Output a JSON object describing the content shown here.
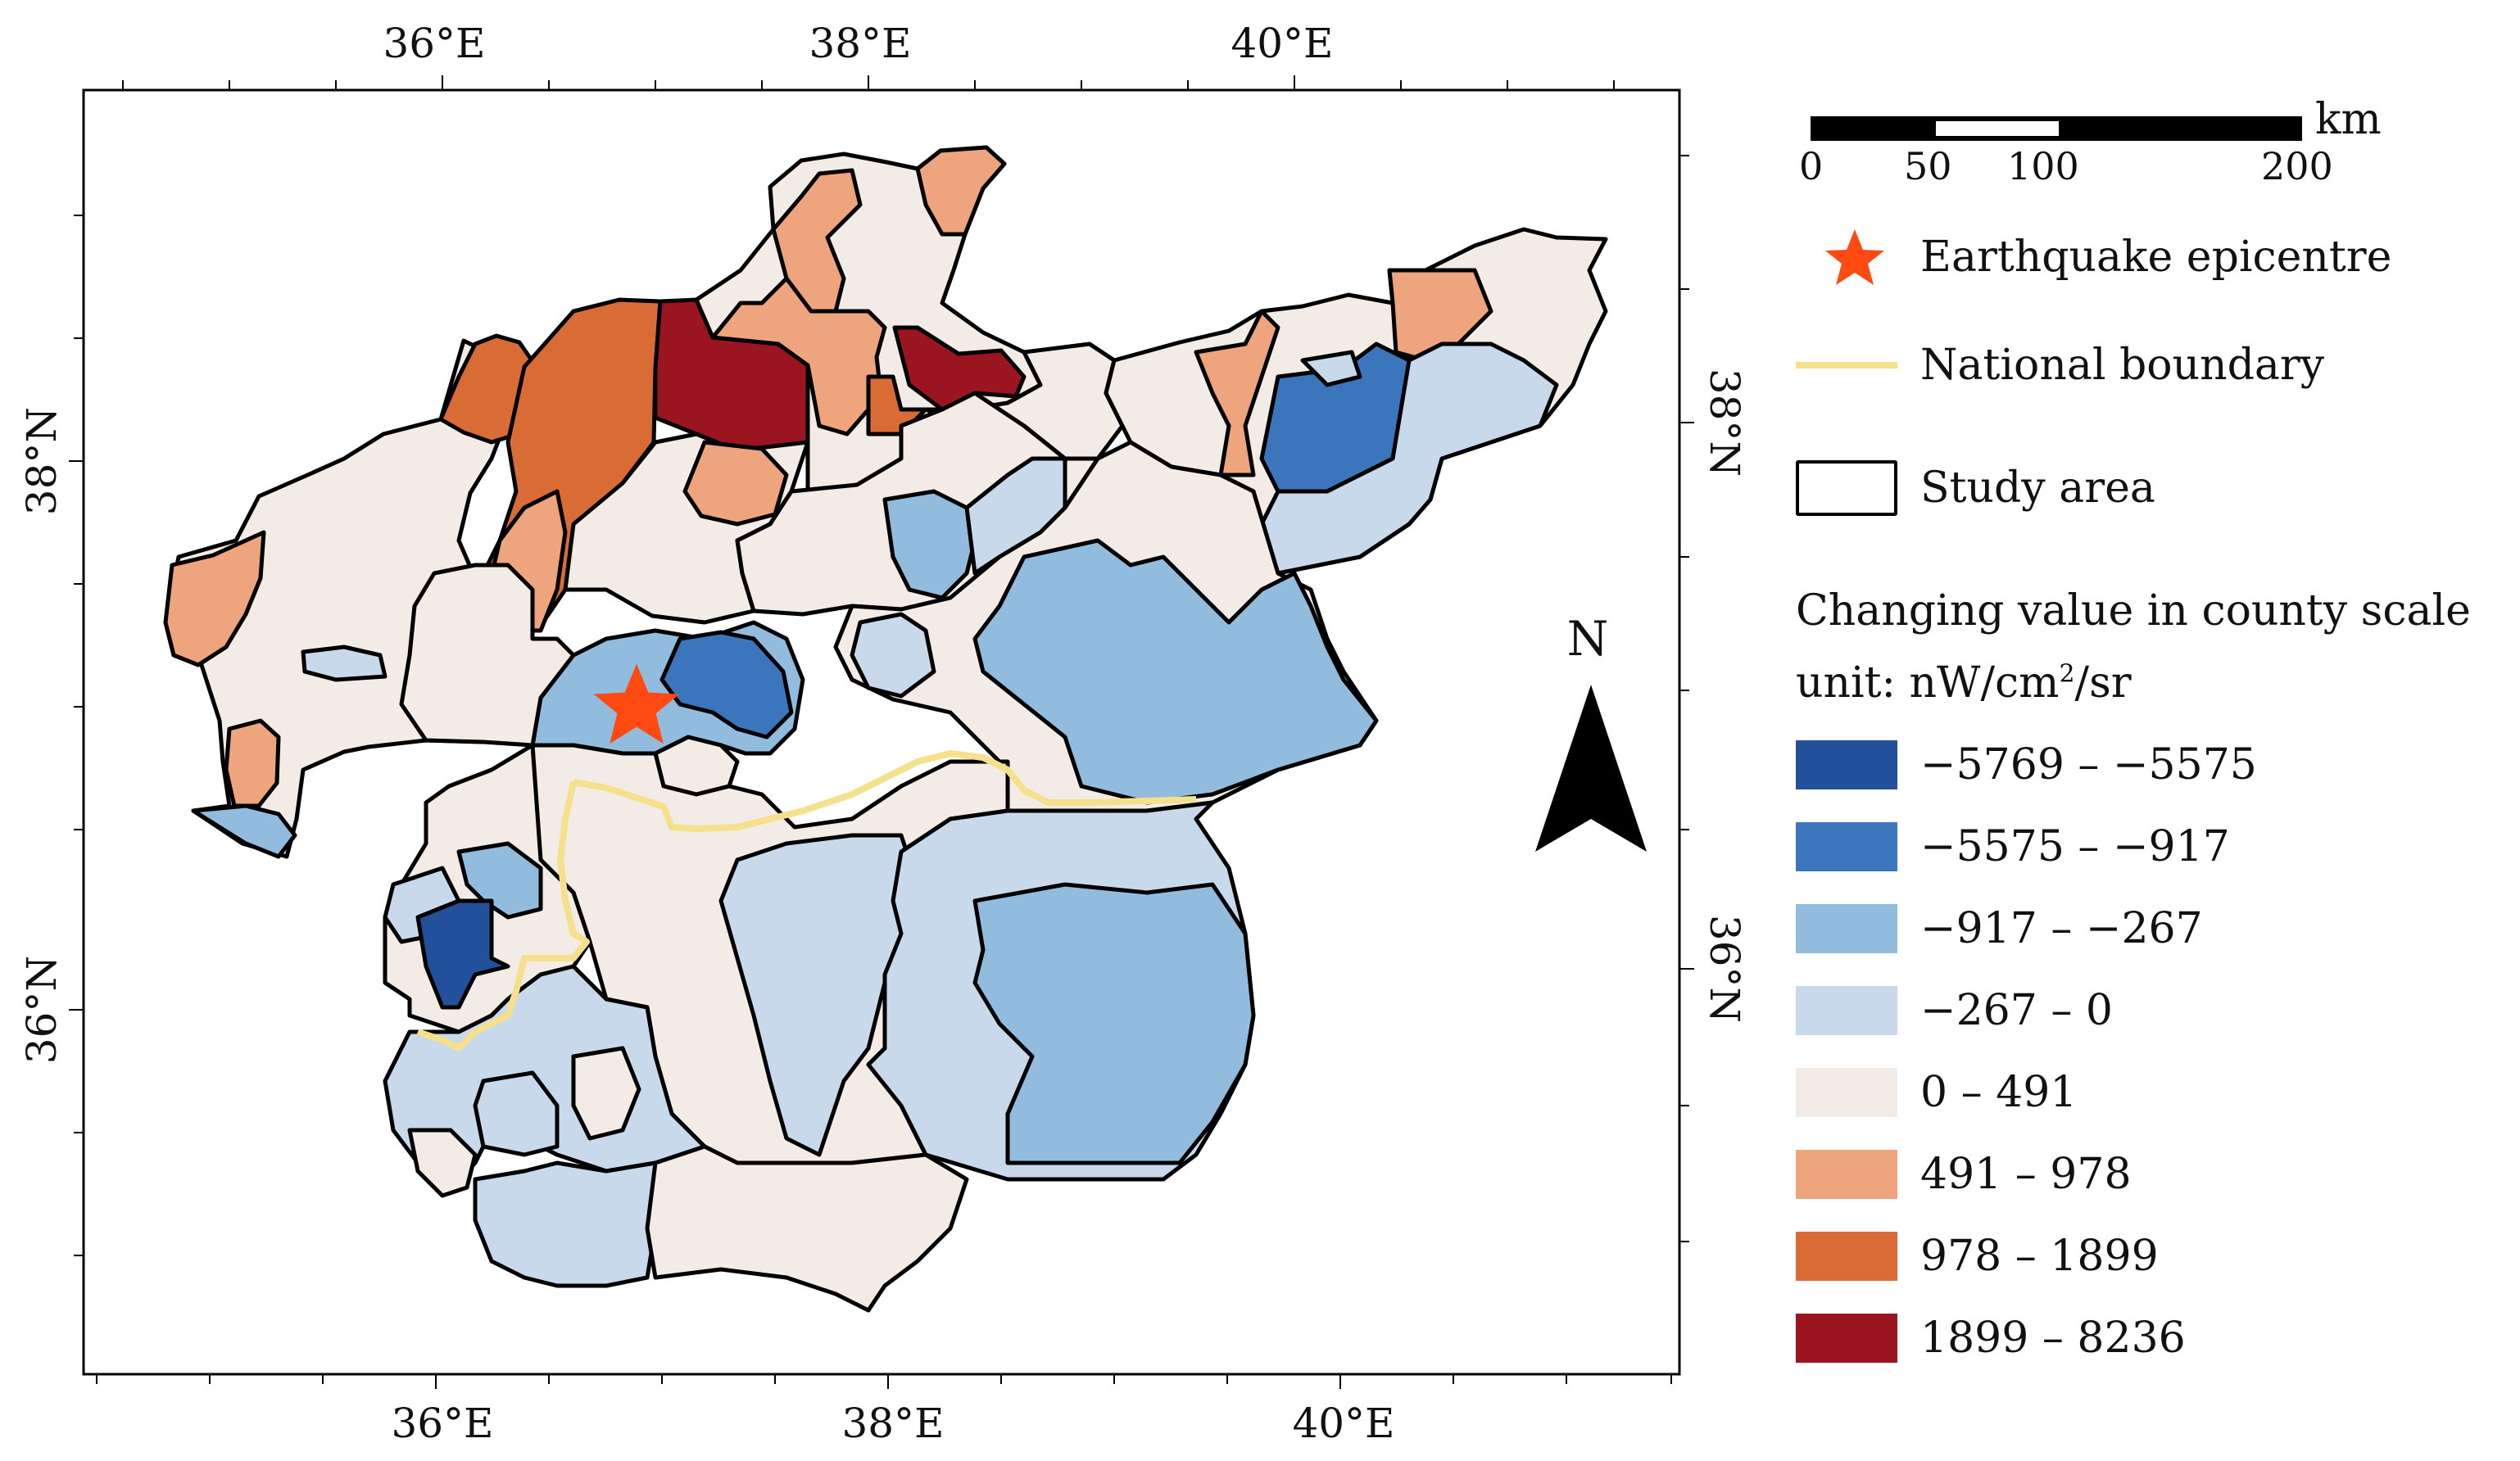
{
  "map": {
    "top_lon_labels": [
      "36°E",
      "38°E",
      "40°E"
    ],
    "bottom_lon_labels": [
      "36°E",
      "38°E",
      "40°E"
    ],
    "left_lat_labels": [
      "38°N",
      "36°N"
    ],
    "right_lat_labels": [
      "38°N",
      "36°N"
    ],
    "north_label": "N"
  },
  "legend": {
    "scale_unit": "km",
    "scale_ticks": [
      "0",
      "50",
      "100",
      "200"
    ],
    "epicentre_label": "Earthquake epicentre",
    "boundary_label": "National boundary",
    "study_area_label": "Study area",
    "title": "Changing value in county scale",
    "unit_prefix": "unit: nW/cm",
    "unit_sup": "2",
    "unit_suffix": "/sr",
    "classes": [
      {
        "label": "−5769 – −5575",
        "color": "#23509a"
      },
      {
        "label": "−5575 – −917",
        "color": "#3b76bd"
      },
      {
        "label": "−917 – −267",
        "color": "#91bcde"
      },
      {
        "label": "−267 – 0",
        "color": "#c8d9ec"
      },
      {
        "label": "0 – 491",
        "color": "#f3ebe6"
      },
      {
        "label": "491 – 978",
        "color": "#eea47c"
      },
      {
        "label": "978 – 1899",
        "color": "#d96b35"
      },
      {
        "label": "1899 – 8236",
        "color": "#9b1520"
      }
    ]
  },
  "colors": {
    "epicentre": "#ff4a12",
    "national_boundary": "#f5e08c",
    "study_area_outline": "#000000"
  }
}
